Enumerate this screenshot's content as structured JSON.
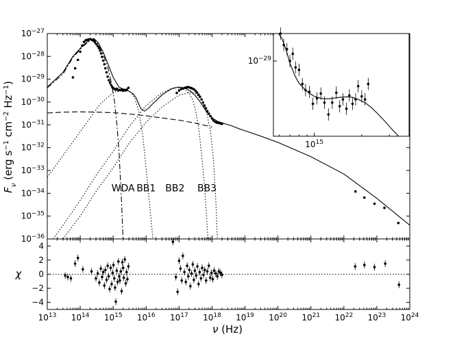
{
  "chart_data": [
    {
      "panel": "main",
      "type": "line",
      "xscale": "log",
      "yscale": "log",
      "xlim": [
        10000000000000.0,
        1e+24
      ],
      "ylim": [
        1e-36,
        1e-27
      ],
      "ylabel_parts": {
        "sym": "F",
        "sub": "ν",
        "unit_open": " (erg s",
        "e1": "−1",
        "unit_mid": " cm",
        "e2": "−2",
        "unit_hz": " Hz",
        "e3": "−1",
        "unit_close": ")"
      },
      "yticks": [
        {
          "v": 1e-27,
          "e": "−27"
        },
        {
          "v": 1e-28,
          "e": "−28"
        },
        {
          "v": 1e-29,
          "e": "−29"
        },
        {
          "v": 1e-30,
          "e": "−30"
        },
        {
          "v": 1e-31,
          "e": "−31"
        },
        {
          "v": 1e-32,
          "e": "−32"
        },
        {
          "v": 1e-33,
          "e": "−33"
        },
        {
          "v": 1e-34,
          "e": "−34"
        },
        {
          "v": 1e-35,
          "e": "−35"
        },
        {
          "v": 1e-36,
          "e": "−36"
        }
      ],
      "tick_base": "10",
      "annotations": [
        {
          "text": "WDA",
          "x": 2000000000000000.0,
          "y": 1.2e-34
        },
        {
          "text": "BB1",
          "x": 1e+16,
          "y": 1.2e-34
        },
        {
          "text": "BB2",
          "x": 7.5e+16,
          "y": 1.2e-34
        },
        {
          "text": "BB3",
          "x": 7e+17,
          "y": 1.2e-34
        }
      ],
      "series": [
        {
          "style": "solid",
          "x": [
            10000000000000.0,
            30000000000000.0,
            60000000000000.0,
            120000000000000.0,
            200000000000000.0,
            260000000000000.0,
            350000000000000.0,
            500000000000000.0,
            700000000000000.0,
            1000000000000000.0,
            1500000000000000.0,
            2200000000000000.0,
            3000000000000000.0,
            4000000000000000.0,
            5000000000000000.0,
            6000000000000000.0,
            7000000000000000.0,
            9000000000000000.0,
            1.2e+16,
            1.6e+16,
            2.2e+16,
            3e+16,
            4.5e+16,
            6e+16,
            8e+16,
            1e+17,
            1.3e+17,
            1.7e+17,
            2.2e+17,
            3e+17,
            4e+17,
            5.5e+17,
            7e+17,
            1e+18,
            1.5e+18,
            2.5e+18,
            4e+18,
            7e+18,
            1e+19,
            3e+19,
            1e+20,
            1e+21,
            1e+22,
            1e+23,
            1e+24
          ],
          "y": [
            4.5e-30,
            2e-29,
            1e-28,
            3e-28,
            5.5e-28,
            6e-28,
            4e-28,
            1.5e-28,
            4.5e-29,
            1.2e-29,
            4.5e-30,
            3.5e-30,
            3e-30,
            2.3e-30,
            1.5e-30,
            8e-31,
            5e-31,
            4e-31,
            5.5e-31,
            8.5e-31,
            1.3e-30,
            2e-30,
            3e-30,
            3.8e-30,
            4.3e-30,
            4.5e-30,
            4.3e-30,
            3.8e-30,
            3e-30,
            2e-30,
            1.2e-30,
            6e-31,
            3.5e-31,
            2e-31,
            1.4e-31,
            1.1e-31,
            9e-32,
            6.5e-32,
            5.5e-32,
            3.2e-32,
            1.7e-32,
            4e-33,
            7e-34,
            6e-35,
            4e-36
          ]
        },
        {
          "style": "dashed",
          "x": [
            10000000000000.0,
            30000000000000.0,
            100000000000000.0,
            300000000000000.0,
            1000000000000000.0,
            3000000000000000.0,
            1e+16,
            3e+16,
            1e+17,
            3e+17,
            1e+18
          ],
          "y": [
            3.3e-31,
            3.6e-31,
            3.7e-31,
            3.6e-31,
            3.4e-31,
            3e-31,
            2.5e-31,
            2e-31,
            1.6e-31,
            1.2e-31,
            8e-32
          ]
        },
        {
          "style": "dashdot",
          "x": [
            10000000000000.0,
            30000000000000.0,
            60000000000000.0,
            120000000000000.0,
            200000000000000.0,
            260000000000000.0,
            350000000000000.0,
            500000000000000.0,
            700000000000000.0,
            900000000000000.0,
            1100000000000000.0,
            1300000000000000.0,
            1500000000000000.0,
            1700000000000000.0,
            1850000000000000.0,
            1950000000000000.0,
            2000000000000000.0
          ],
          "y": [
            4.2e-30,
            1.7e-29,
            9e-29,
            2.7e-28,
            5e-28,
            5.5e-28,
            3.5e-28,
            1.2e-28,
            3e-29,
            6e-30,
            1e-30,
            1e-31,
            7e-33,
            2e-34,
            1.5e-35,
            2e-36,
            1e-36
          ]
        },
        {
          "style": "dotted",
          "x": [
            10000000000000.0,
            20000000000000.0,
            40000000000000.0,
            100000000000000.0,
            200000000000000.0,
            400000000000000.0,
            800000000000000.0,
            1500000000000000.0,
            2500000000000000.0,
            3500000000000000.0,
            4500000000000000.0,
            6000000000000000.0,
            8000000000000000.0,
            1.1e+16,
            1.4e+16,
            1.6e+16
          ],
          "y": [
            5e-34,
            2e-33,
            8e-33,
            5e-32,
            2e-31,
            8e-31,
            2e-30,
            3.5e-30,
            3.5e-30,
            2.6e-30,
            1.5e-30,
            4e-31,
            3e-32,
            3e-34,
            8e-36,
            1e-36
          ]
        },
        {
          "style": "dotted",
          "x": [
            15000000000000.0,
            30000000000000.0,
            100000000000000.0,
            300000000000000.0,
            1000000000000000.0,
            3000000000000000.0,
            1e+16,
            3e+16,
            6e+16,
            1e+17,
            1.5e+17,
            2e+17,
            2.6e+17,
            3.2e+17,
            4e+17,
            5e+17,
            6e+17,
            7e+17,
            7.5e+17
          ],
          "y": [
            1e-36,
            4e-36,
            5e-35,
            6e-34,
            7e-33,
            8e-32,
            7e-31,
            2.5e-30,
            4e-30,
            4.2e-30,
            3.5e-30,
            2.5e-30,
            1.2e-30,
            4e-31,
            6e-32,
            3e-33,
            1.5e-34,
            5e-36,
            1e-36
          ]
        },
        {
          "style": "dotted",
          "x": [
            30000000000000.0,
            100000000000000.0,
            300000000000000.0,
            1000000000000000.0,
            3000000000000000.0,
            1e+16,
            3e+16,
            1e+17,
            2e+17,
            3e+17,
            5e+17,
            7e+17,
            9e+17,
            1.1e+18,
            1.3e+18,
            1.45e+18
          ],
          "y": [
            1e-36,
            1e-35,
            1.2e-34,
            1.3e-33,
            1.5e-32,
            1.3e-31,
            6e-31,
            2e-30,
            2.6e-30,
            2.5e-30,
            1.2e-30,
            3e-31,
            5e-32,
            3e-33,
            5e-35,
            1e-36
          ]
        }
      ],
      "points": {
        "x": [
          60000000000000.0,
          70000000000000.0,
          85000000000000.0,
          100000000000000.0,
          115000000000000.0,
          130000000000000.0,
          145000000000000.0,
          160000000000000.0,
          180000000000000.0,
          200000000000000.0,
          230000000000000.0,
          255000000000000.0,
          280000000000000.0,
          310000000000000.0,
          340000000000000.0,
          370000000000000.0,
          400000000000000.0,
          430000000000000.0,
          460000000000000.0,
          500000000000000.0,
          540000000000000.0,
          580000000000000.0,
          630000000000000.0,
          680000000000000.0,
          740000000000000.0,
          800000000000000.0,
          870000000000000.0,
          940000000000000.0,
          1020000000000000.0,
          1100000000000000.0,
          1200000000000000.0,
          1300000000000000.0,
          1420000000000000.0,
          1550000000000000.0,
          1700000000000000.0,
          1850000000000000.0,
          2000000000000000.0,
          2200000000000000.0,
          2400000000000000.0,
          2600000000000000.0,
          2900000000000000.0,
          8.5e+16,
          1e+17,
          1.15e+17,
          1.3e+17,
          1.5e+17,
          1.7e+17,
          1.9e+17,
          2.1e+17,
          2.35e+17,
          2.6e+17,
          2.9e+17,
          3.2e+17,
          3.5e+17,
          3.9e+17,
          4.3e+17,
          4.8e+17,
          5.3e+17,
          5.9e+17,
          6.5e+17,
          7.2e+17,
          8e+17,
          9e+17,
          1e+18,
          1.1e+18,
          1.25e+18,
          1.4e+18,
          1.6e+18,
          1.8e+18,
          2e+18,
          2.25e+22,
          4.2e+22,
          8.5e+22,
          1.7e+23,
          4.5e+23
        ],
        "y": [
          1.2e-29,
          3e-29,
          7e-29,
          1.6e-28,
          3e-28,
          4.3e-28,
          5e-28,
          5.3e-28,
          5.5e-28,
          5.7e-28,
          5.2e-28,
          4.8e-28,
          4.1e-28,
          3.4e-28,
          2.8e-28,
          2.3e-28,
          1.8e-28,
          1.35e-28,
          9.5e-29,
          6.5e-29,
          4.5e-29,
          3e-29,
          2e-29,
          1.3e-29,
          9e-30,
          7e-30,
          5.5e-30,
          4.5e-30,
          4e-30,
          3.7e-30,
          3.5e-30,
          3.8e-30,
          3.2e-30,
          3.4e-30,
          3.3e-30,
          3.6e-30,
          3.1e-30,
          3.4e-30,
          3.2e-30,
          3.5e-30,
          4.2e-30,
          2.5e-30,
          3.2e-30,
          3.7e-30,
          3.9e-30,
          4.2e-30,
          4.4e-30,
          4.5e-30,
          4.3e-30,
          4.1e-30,
          3.8e-30,
          3.5e-30,
          3e-30,
          2.6e-30,
          2.1e-30,
          1.7e-30,
          1.3e-30,
          9.5e-31,
          7e-31,
          5.3e-31,
          4e-31,
          3.1e-31,
          2.4e-31,
          1.9e-31,
          1.55e-31,
          1.35e-31,
          1.25e-31,
          1.2e-31,
          1.15e-31,
          1.1e-31,
          1.2e-34,
          6.5e-35,
          3.5e-35,
          2.3e-35,
          5e-36
        ]
      }
    },
    {
      "panel": "residuals",
      "type": "scatter",
      "xscale": "log",
      "xlim": [
        10000000000000.0,
        1e+24
      ],
      "ylim": [
        -5,
        5
      ],
      "ylabel": "χ",
      "xlabel_parts": {
        "sym": "ν",
        "unit": " (Hz)"
      },
      "xticks": [
        {
          "v": 10000000000000.0,
          "e": "13"
        },
        {
          "v": 100000000000000.0,
          "e": "14"
        },
        {
          "v": 1000000000000000.0,
          "e": "15"
        },
        {
          "v": 1e+16,
          "e": "16"
        },
        {
          "v": 1e+17,
          "e": "17"
        },
        {
          "v": 1e+18,
          "e": "18"
        },
        {
          "v": 1e+19,
          "e": "19"
        },
        {
          "v": 1e+20,
          "e": "20"
        },
        {
          "v": 1e+21,
          "e": "21"
        },
        {
          "v": 1e+22,
          "e": "22"
        },
        {
          "v": 1e+23,
          "e": "23"
        },
        {
          "v": 1e+24,
          "e": "24"
        }
      ],
      "yticks": [
        {
          "v": 4,
          "t": "4"
        },
        {
          "v": 2,
          "t": "2"
        },
        {
          "v": 0,
          "t": "0"
        },
        {
          "v": -2,
          "t": "−2"
        },
        {
          "v": -4,
          "t": "−4"
        }
      ],
      "points": {
        "x": [
          35000000000000.0,
          42000000000000.0,
          52000000000000.0,
          70000000000000.0,
          85000000000000.0,
          120000000000000.0,
          220000000000000.0,
          300000000000000.0,
          340000000000000.0,
          380000000000000.0,
          420000000000000.0,
          460000000000000.0,
          500000000000000.0,
          540000000000000.0,
          580000000000000.0,
          630000000000000.0,
          680000000000000.0,
          730000000000000.0,
          780000000000000.0,
          840000000000000.0,
          900000000000000.0,
          960000000000000.0,
          1020000000000000.0,
          1080000000000000.0,
          1140000000000000.0,
          1200000000000000.0,
          1280000000000000.0,
          1360000000000000.0,
          1440000000000000.0,
          1520000000000000.0,
          1600000000000000.0,
          1700000000000000.0,
          1800000000000000.0,
          1900000000000000.0,
          2000000000000000.0,
          2100000000000000.0,
          2250000000000000.0,
          2400000000000000.0,
          2550000000000000.0,
          2700000000000000.0,
          2900000000000000.0,
          6.5e+16,
          8e+16,
          9e+16,
          1e+17,
          1.1e+17,
          1.2e+17,
          1.3e+17,
          1.45e+17,
          1.6e+17,
          1.75e+17,
          1.9e+17,
          2.05e+17,
          2.2e+17,
          2.4e+17,
          2.6e+17,
          2.8e+17,
          3e+17,
          3.3e+17,
          3.6e+17,
          3.9e+17,
          4.2e+17,
          4.6e+17,
          5e+17,
          5.5e+17,
          6e+17,
          6.6e+17,
          7.2e+17,
          8e+17,
          8.8e+17,
          9.6e+17,
          1.05e+18,
          1.15e+18,
          1.3e+18,
          1.45e+18,
          1.6e+18,
          1.8e+18,
          2e+18,
          2.2e+22,
          4.2e+22,
          8.5e+22,
          1.8e+23,
          4.7e+23
        ],
        "y": [
          -0.2,
          -0.4,
          -0.6,
          1.5,
          2.3,
          0.7,
          0.4,
          -0.6,
          0.1,
          -1.2,
          0.8,
          -0.4,
          0.3,
          -1.6,
          0.6,
          -0.8,
          1.2,
          -0.3,
          -2.1,
          0.9,
          -1.4,
          0.2,
          1.3,
          -0.6,
          -1.9,
          -3.9,
          0.5,
          -1.1,
          1.8,
          -0.3,
          -0.9,
          0.4,
          -2.4,
          1.7,
          0.9,
          -0.5,
          2.1,
          -1.3,
          0.3,
          -0.7,
          1.1,
          4.6,
          -0.4,
          -2.5,
          1.9,
          0.8,
          -0.9,
          2.6,
          0.3,
          -1.1,
          1.2,
          -0.3,
          0.6,
          -1.7,
          0.1,
          1.4,
          -0.8,
          0.5,
          -0.2,
          1.1,
          -1.4,
          0.3,
          -0.6,
          0.9,
          -0.1,
          0.6,
          -0.9,
          0.4,
          1.2,
          -0.5,
          0.2,
          -0.7,
          0.5,
          0.1,
          -0.3,
          0.4,
          0.2,
          -0.1,
          1.1,
          1.3,
          1.0,
          1.5,
          -1.5
        ]
      }
    },
    {
      "panel": "inset",
      "type": "line",
      "xscale": "log",
      "yscale": "log",
      "xlim": [
        550000000000000.0,
        4000000000000000.0
      ],
      "ylim": [
        1.5e-30,
        2e-29
      ],
      "xticks": [
        {
          "v": 1000000000000000.0,
          "e": "15"
        }
      ],
      "yticks": [
        {
          "v": 1e-29,
          "e": "−29"
        }
      ],
      "series": [
        {
          "style": "solid",
          "x": [
            580000000000000.0,
            620000000000000.0,
            660000000000000.0,
            700000000000000.0,
            750000000000000.0,
            800000000000000.0,
            860000000000000.0,
            920000000000000.0,
            1000000000000000.0,
            1100000000000000.0,
            1200000000000000.0,
            1300000000000000.0,
            1450000000000000.0,
            1600000000000000.0,
            1750000000000000.0,
            1900000000000000.0,
            2100000000000000.0,
            2300000000000000.0,
            2500000000000000.0,
            2800000000000000.0,
            3100000000000000.0,
            3500000000000000.0,
            4000000000000000.0
          ],
          "y": [
            2.1e-29,
            1.8e-29,
            1.35e-29,
            9.5e-30,
            7e-30,
            5.7e-30,
            5e-30,
            4.5e-30,
            4.1e-30,
            3.9e-30,
            3.85e-30,
            3.9e-30,
            4e-30,
            4.05e-30,
            4e-30,
            3.8e-30,
            3.5e-30,
            3.1e-30,
            2.7e-30,
            2.2e-30,
            1.8e-30,
            1.45e-30,
            1.15e-30
          ]
        }
      ],
      "points": {
        "x": [
          610000000000000.0,
          640000000000000.0,
          670000000000000.0,
          700000000000000.0,
          730000000000000.0,
          760000000000000.0,
          800000000000000.0,
          840000000000000.0,
          880000000000000.0,
          930000000000000.0,
          980000000000000.0,
          1040000000000000.0,
          1100000000000000.0,
          1160000000000000.0,
          1230000000000000.0,
          1300000000000000.0,
          1380000000000000.0,
          1450000000000000.0,
          1520000000000000.0,
          1600000000000000.0,
          1670000000000000.0,
          1750000000000000.0,
          1830000000000000.0,
          1900000000000000.0,
          2000000000000000.0,
          2100000000000000.0,
          2200000000000000.0
        ],
        "y": [
          2e-29,
          1.5e-29,
          1.35e-29,
          1e-29,
          1.2e-29,
          8.5e-30,
          8e-30,
          5.6e-30,
          4.8e-30,
          4.6e-30,
          3.4e-30,
          3.9e-30,
          4.4e-30,
          3.5e-30,
          2.6e-30,
          3.5e-30,
          4.5e-30,
          3.2e-30,
          3.8e-30,
          3e-30,
          4.2e-30,
          3.4e-30,
          3.8e-30,
          5.3e-30,
          4.1e-30,
          3.8e-30,
          5.6e-30
        ]
      }
    }
  ]
}
